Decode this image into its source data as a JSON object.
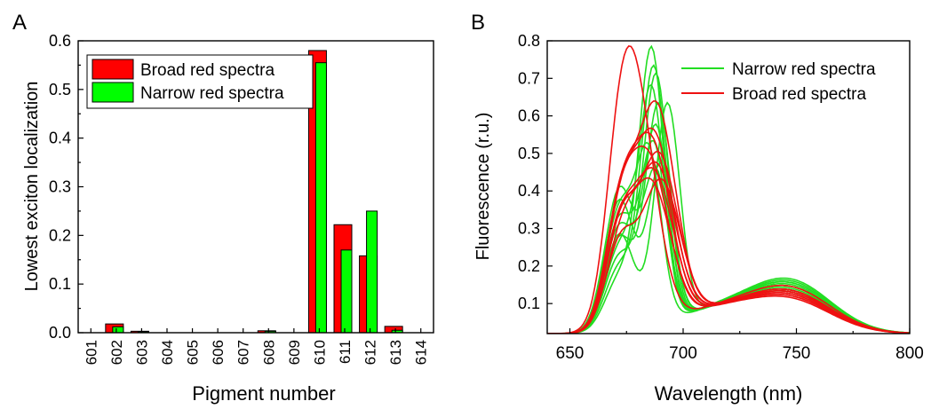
{
  "chart_data": [
    {
      "panel_label": "A",
      "type": "bar",
      "xlabel": "Pigment number",
      "ylabel": "Lowest exciton localization",
      "ylim": [
        0,
        0.6
      ],
      "yticks": [
        "0.0",
        "0.1",
        "0.2",
        "0.3",
        "0.4",
        "0.5",
        "0.6"
      ],
      "categories": [
        "601",
        "602",
        "603",
        "604",
        "605",
        "606",
        "607",
        "608",
        "609",
        "610",
        "611",
        "612",
        "613",
        "614"
      ],
      "legend_position": "top-left",
      "series": [
        {
          "name": "Broad red spectra",
          "color": "#ff0000",
          "values": [
            0,
            0.018,
            0.003,
            0,
            0,
            0,
            0,
            0.004,
            0,
            0.58,
            0.222,
            0.158,
            0.013,
            0
          ]
        },
        {
          "name": "Narrow red spectra",
          "color": "#00ff00",
          "values": [
            0,
            0.012,
            0.002,
            0,
            0,
            0,
            0,
            0.003,
            0,
            0.555,
            0.17,
            0.25,
            0.005,
            0
          ]
        }
      ]
    },
    {
      "panel_label": "B",
      "type": "line",
      "xlabel": "Wavelength (nm)",
      "ylabel": "Fluorescence (r.u.)",
      "xlim": [
        640,
        800
      ],
      "ylim": [
        0.02,
        0.8
      ],
      "xticks": [
        "650",
        "700",
        "750",
        "800"
      ],
      "yticks": [
        "0.1",
        "0.2",
        "0.3",
        "0.4",
        "0.5",
        "0.6",
        "0.7",
        "0.8"
      ],
      "legend_position": "top-right",
      "series": [
        {
          "name": "Narrow red spectra",
          "color": "#22dd22",
          "count": 11,
          "peak_positions_nm": [
            686,
            687,
            688,
            686,
            689,
            693,
            688,
            687,
            685,
            690,
            688
          ],
          "peak_heights": [
            0.73,
            0.68,
            0.66,
            0.62,
            0.58,
            0.58,
            0.52,
            0.47,
            0.44,
            0.42,
            0.4
          ],
          "shoulder_heights_at_672nm": [
            0.14,
            0.17,
            0.2,
            0.22,
            0.25,
            0.26,
            0.28,
            0.3,
            0.32,
            0.35,
            0.38
          ],
          "vibronic_heights_at_750nm": [
            0.13,
            0.125,
            0.12,
            0.12,
            0.115,
            0.11,
            0.11,
            0.105,
            0.1,
            0.1,
            0.095
          ]
        },
        {
          "name": "Broad red spectra",
          "color": "#ee1111",
          "count": 10,
          "peak_positions_nm": [
            680,
            688,
            687,
            686,
            689,
            685,
            688,
            687,
            690,
            686
          ],
          "peak_heights": [
            0.55,
            0.58,
            0.5,
            0.48,
            0.45,
            0.43,
            0.42,
            0.4,
            0.38,
            0.37
          ],
          "shoulder_heights_at_672nm": [
            0.32,
            0.3,
            0.3,
            0.28,
            0.27,
            0.26,
            0.25,
            0.24,
            0.22,
            0.2
          ],
          "vibronic_heights_at_750nm": [
            0.11,
            0.1,
            0.1,
            0.095,
            0.095,
            0.09,
            0.09,
            0.085,
            0.085,
            0.08
          ]
        }
      ]
    }
  ]
}
